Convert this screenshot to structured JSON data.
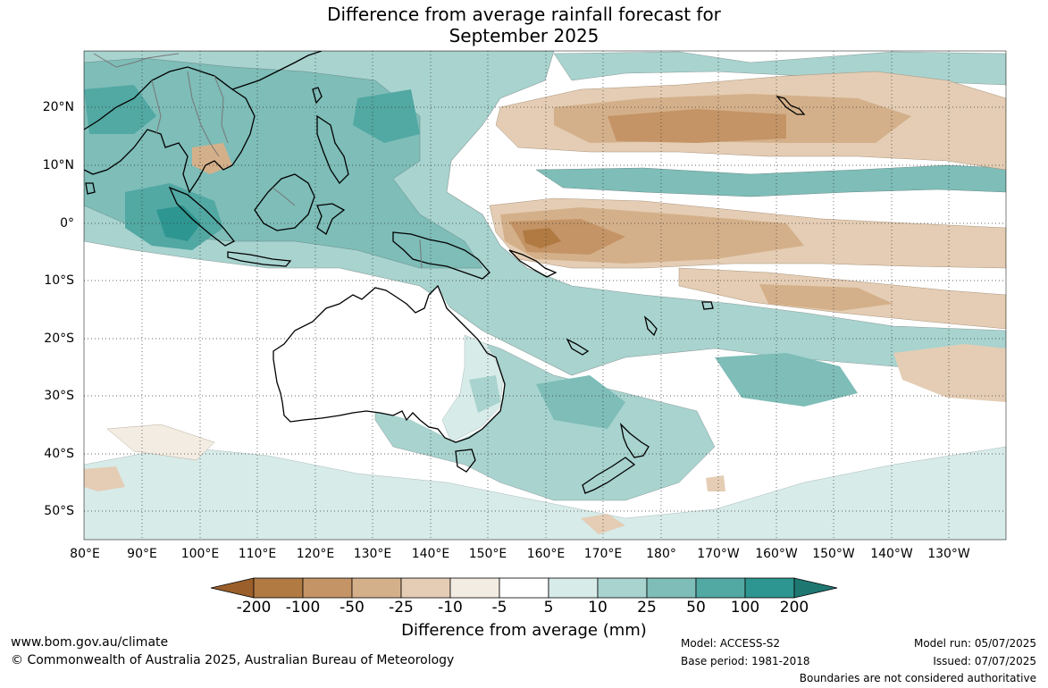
{
  "title": {
    "line1": "Difference from average rainfall forecast for",
    "line2": "September 2025"
  },
  "lon_labels": [
    "80°E",
    "90°E",
    "100°E",
    "110°E",
    "120°E",
    "130°E",
    "140°E",
    "150°E",
    "160°E",
    "170°E",
    "180°",
    "170°W",
    "160°W",
    "150°W",
    "140°W",
    "130°W"
  ],
  "lat_labels": [
    "20°N",
    "10°N",
    "0°",
    "10°S",
    "20°S",
    "30°S",
    "40°S",
    "50°S"
  ],
  "colorbar": {
    "label": "Difference from average (mm)",
    "ticks": [
      "-200",
      "-100",
      "-50",
      "-25",
      "-10",
      "-5",
      "5",
      "10",
      "25",
      "50",
      "100",
      "200"
    ],
    "colors": [
      "#9a5f2a",
      "#b07a42",
      "#c49466",
      "#d4b08a",
      "#e4cdb4",
      "#f3ece2",
      "#ffffff",
      "#d7ebe9",
      "#a8d3cf",
      "#7ebdb8",
      "#52a8a3",
      "#2e9690",
      "#1f7772"
    ]
  },
  "footer": {
    "url": "www.bom.gov.au/climate",
    "copyright": "© Commonwealth of Australia 2025, Australian Bureau of Meteorology",
    "model": "Model: ACCESS-S2",
    "base_period": "Base period: 1981-2018",
    "model_run": "Model run: 05/07/2025",
    "issued": "Issued: 07/07/2025",
    "boundaries": "Boundaries are not considered authoritative"
  }
}
